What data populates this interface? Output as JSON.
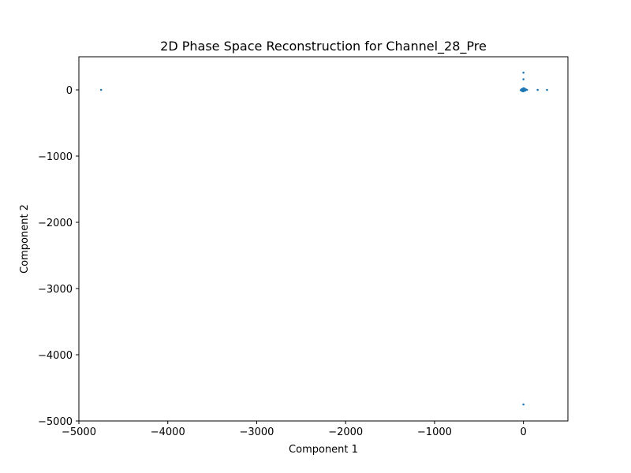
{
  "chart_data": {
    "type": "scatter",
    "title": "2D Phase Space Reconstruction for Channel_28_Pre",
    "xlabel": "Component 1",
    "ylabel": "Component 2",
    "xlim": [
      -5000,
      500
    ],
    "ylim": [
      -5000,
      500
    ],
    "xticks": [
      -5000,
      -4000,
      -3000,
      -2000,
      -1000,
      0
    ],
    "yticks": [
      -5000,
      -4000,
      -3000,
      -2000,
      -1000,
      0
    ],
    "xtick_labels": [
      "−5000",
      "−4000",
      "−3000",
      "−2000",
      "−1000",
      "0"
    ],
    "ytick_labels": [
      "−5000",
      "−4000",
      "−3000",
      "−2000",
      "−1000",
      "0"
    ],
    "grid": false,
    "series": [
      {
        "color": "#1f77b4",
        "points": [
          [
            -4750,
            0
          ],
          [
            0,
            -4750
          ],
          [
            0,
            260
          ],
          [
            0,
            160
          ],
          [
            160,
            0
          ],
          [
            265,
            0
          ],
          [
            0,
            0
          ],
          [
            -10,
            0
          ],
          [
            10,
            0
          ],
          [
            -20,
            5
          ],
          [
            20,
            -5
          ],
          [
            5,
            15
          ],
          [
            -5,
            -15
          ],
          [
            15,
            10
          ],
          [
            -15,
            -10
          ],
          [
            25,
            0
          ],
          [
            -25,
            0
          ],
          [
            0,
            25
          ],
          [
            0,
            -20
          ],
          [
            8,
            -8
          ],
          [
            -8,
            8
          ],
          [
            30,
            5
          ],
          [
            -30,
            -5
          ],
          [
            12,
            20
          ],
          [
            -12,
            -20
          ],
          [
            40,
            0
          ],
          [
            18,
            -12
          ],
          [
            -18,
            12
          ]
        ]
      }
    ]
  }
}
